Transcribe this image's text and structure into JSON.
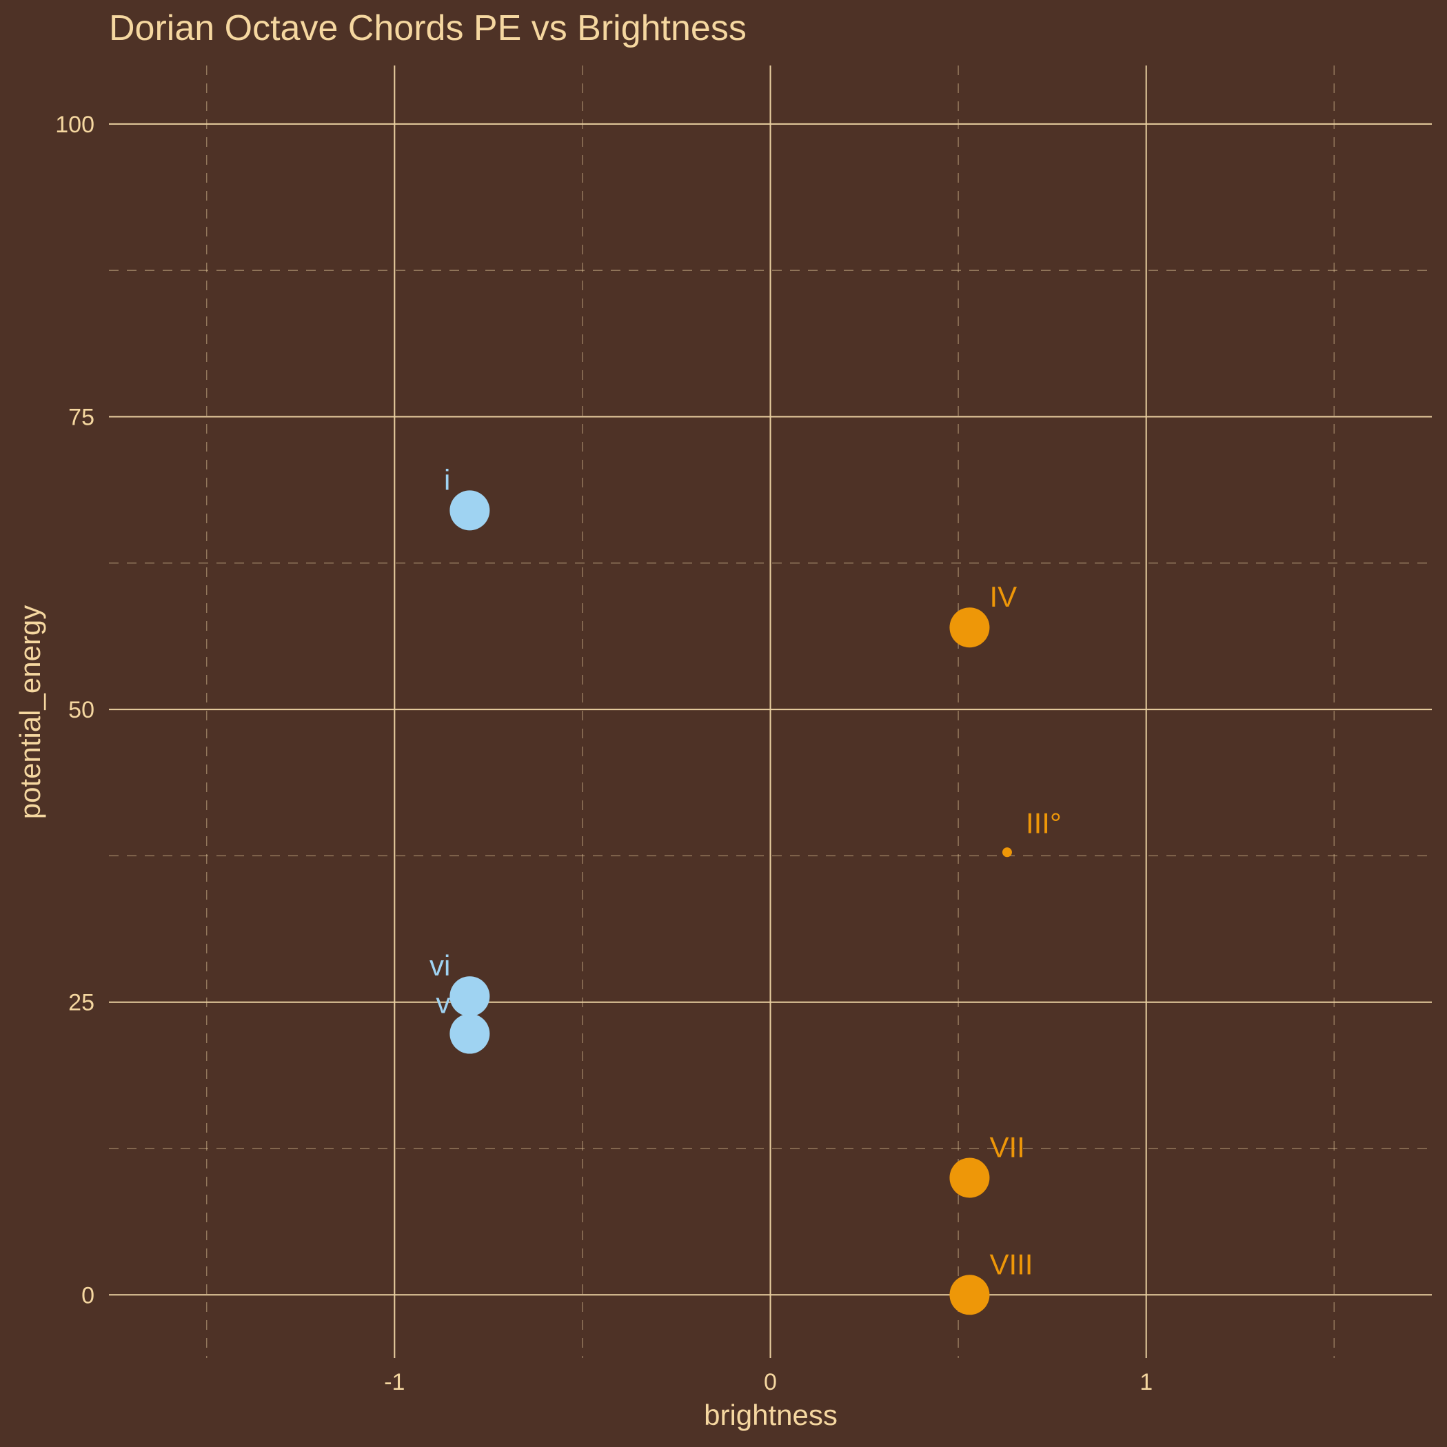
{
  "chart_data": {
    "type": "scatter",
    "title": "Dorian Octave Chords PE vs Brightness",
    "xlabel": "brightness",
    "ylabel": "potential_energy",
    "xlim": [
      -1.76,
      1.76
    ],
    "ylim": [
      -5.4,
      105
    ],
    "x_ticks": [
      -1,
      0,
      1
    ],
    "x_tick_labels": [
      "-1",
      "0",
      "1"
    ],
    "y_ticks": [
      0,
      25,
      50,
      75,
      100
    ],
    "y_tick_labels": [
      "0",
      "25",
      "50",
      "75",
      "100"
    ],
    "x_minor": [
      -1.5,
      -0.5,
      0.5,
      1.5
    ],
    "y_minor": [
      12.5,
      37.5,
      62.5,
      87.5
    ],
    "grid": true,
    "legend": "none",
    "colors": {
      "background": "#4e3226",
      "grid": "#e9cfa0",
      "text": "#f5d7a0",
      "minor_series": "#9fd3f2",
      "major_series": "#ee9708"
    },
    "points": [
      {
        "label": "i",
        "x": -0.8,
        "y": 67,
        "size": "large",
        "group": "minor",
        "label_side": "left"
      },
      {
        "label": "vi",
        "x": -0.8,
        "y": 25.5,
        "size": "large",
        "group": "minor",
        "label_side": "left"
      },
      {
        "label": "v",
        "x": -0.8,
        "y": 22.3,
        "size": "large",
        "group": "minor",
        "label_side": "left"
      },
      {
        "label": "IV",
        "x": 0.53,
        "y": 57,
        "size": "large",
        "group": "major",
        "label_side": "right"
      },
      {
        "label": "III°",
        "x": 0.63,
        "y": 37.8,
        "size": "small",
        "group": "major",
        "label_side": "right"
      },
      {
        "label": "VII",
        "x": 0.53,
        "y": 10,
        "size": "large",
        "group": "major",
        "label_side": "right"
      },
      {
        "label": "VIII",
        "x": 0.53,
        "y": 0,
        "size": "large",
        "group": "major",
        "label_side": "right"
      }
    ]
  }
}
